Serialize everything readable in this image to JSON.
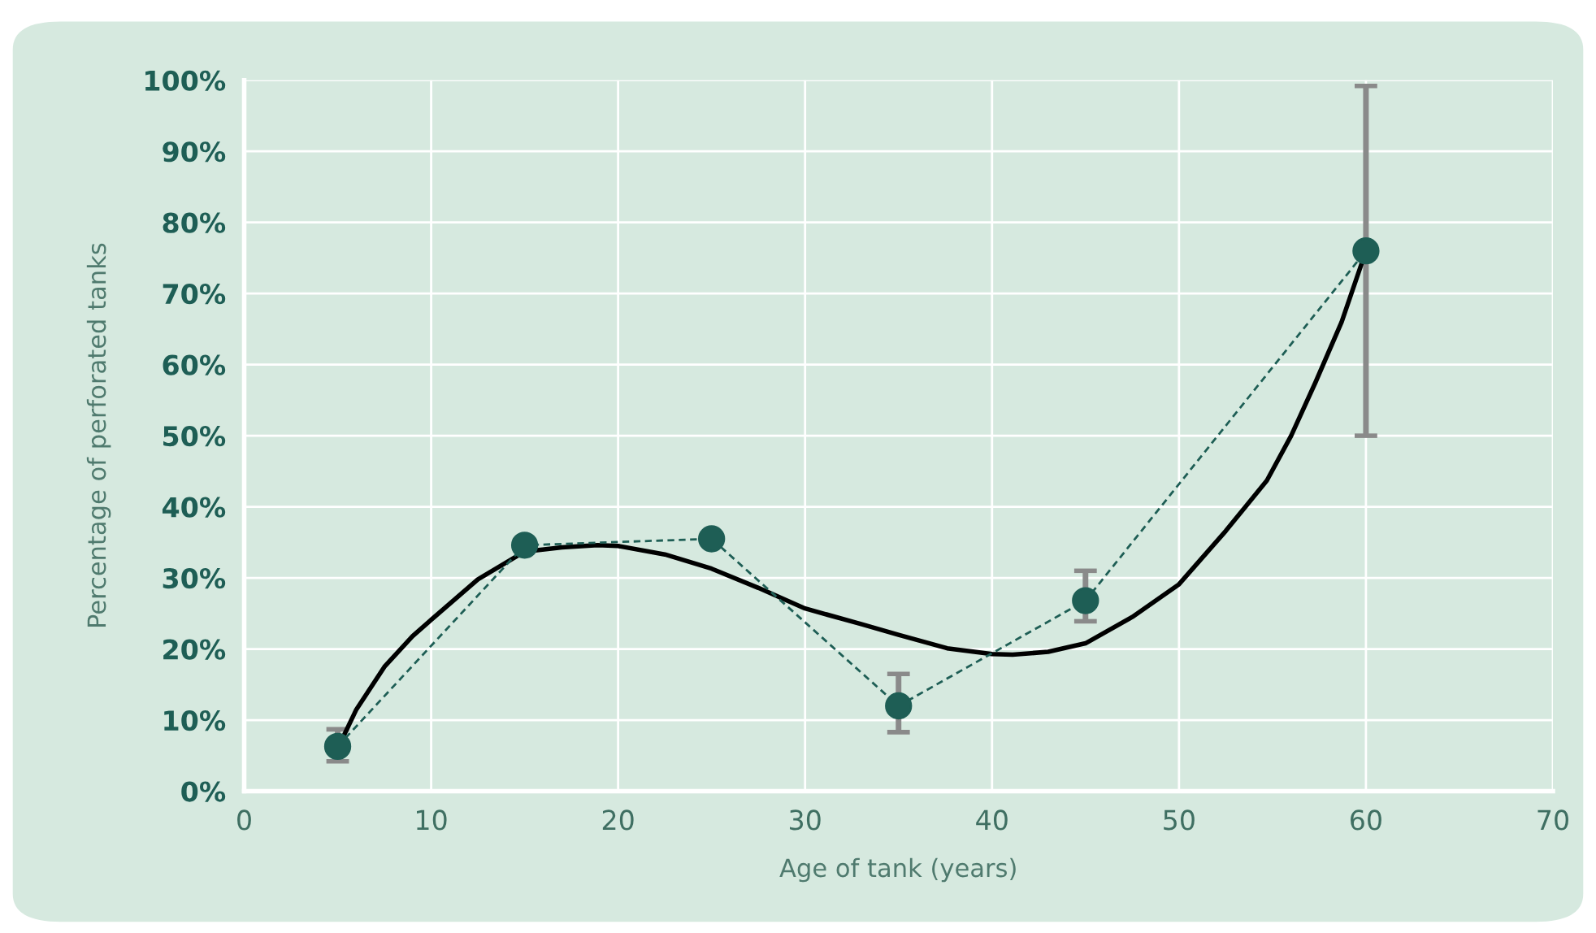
{
  "chart_data": {
    "type": "line",
    "xlabel": "Age of tank (years)",
    "ylabel": "Percentage of perforated tanks",
    "xlim": [
      0,
      70
    ],
    "xticks": [
      0,
      10,
      20,
      30,
      40,
      50,
      60,
      70
    ],
    "ylim": [
      0,
      100
    ],
    "yticks": [
      {
        "value": 0,
        "label": "0%"
      },
      {
        "value": 10,
        "label": "10%"
      },
      {
        "value": 20,
        "label": "20%"
      },
      {
        "value": 30,
        "label": "30%"
      },
      {
        "value": 40,
        "label": "40%"
      },
      {
        "value": 50,
        "label": "50%"
      },
      {
        "value": 60,
        "label": "60%"
      },
      {
        "value": 70,
        "label": "70%"
      },
      {
        "value": 80,
        "label": "80%"
      },
      {
        "value": 90,
        "label": "90%"
      },
      {
        "value": 100,
        "label": "100%"
      }
    ],
    "grid": true,
    "series": [
      {
        "type": "line",
        "color": "#1e5e55",
        "marker": "circle",
        "line_style": "dashed",
        "x": [
          5,
          15,
          25,
          35,
          45,
          60
        ],
        "values": [
          6.3,
          34.6,
          35.5,
          12.0,
          26.8,
          76.0
        ],
        "errors": [
          [
            4.2,
            8.7
          ],
          null,
          null,
          [
            8.3,
            16.5
          ],
          [
            23.9,
            31.0
          ],
          [
            50.0,
            99.2
          ]
        ]
      },
      {
        "type": "line",
        "color": "#000000",
        "marker": "none",
        "line_style": "solid",
        "x": [
          5,
          6,
          7.5,
          9,
          10,
          12.5,
          15,
          17,
          18.9,
          20,
          22.5,
          25,
          27.5,
          30,
          33,
          35,
          37.6,
          40,
          41.1,
          43,
          45,
          47.5,
          50,
          52.5,
          54.7,
          56,
          57.3,
          58.7,
          60
        ],
        "values": [
          6.0,
          11.5,
          17.5,
          21.8,
          24.1,
          29.8,
          33.7,
          34.3,
          34.6,
          34.5,
          33.3,
          31.3,
          28.6,
          25.7,
          23.5,
          22.0,
          20.1,
          19.3,
          19.2,
          19.6,
          20.8,
          24.5,
          29.1,
          36.6,
          43.7,
          50.0,
          57.5,
          66.0,
          76.0
        ]
      }
    ]
  }
}
